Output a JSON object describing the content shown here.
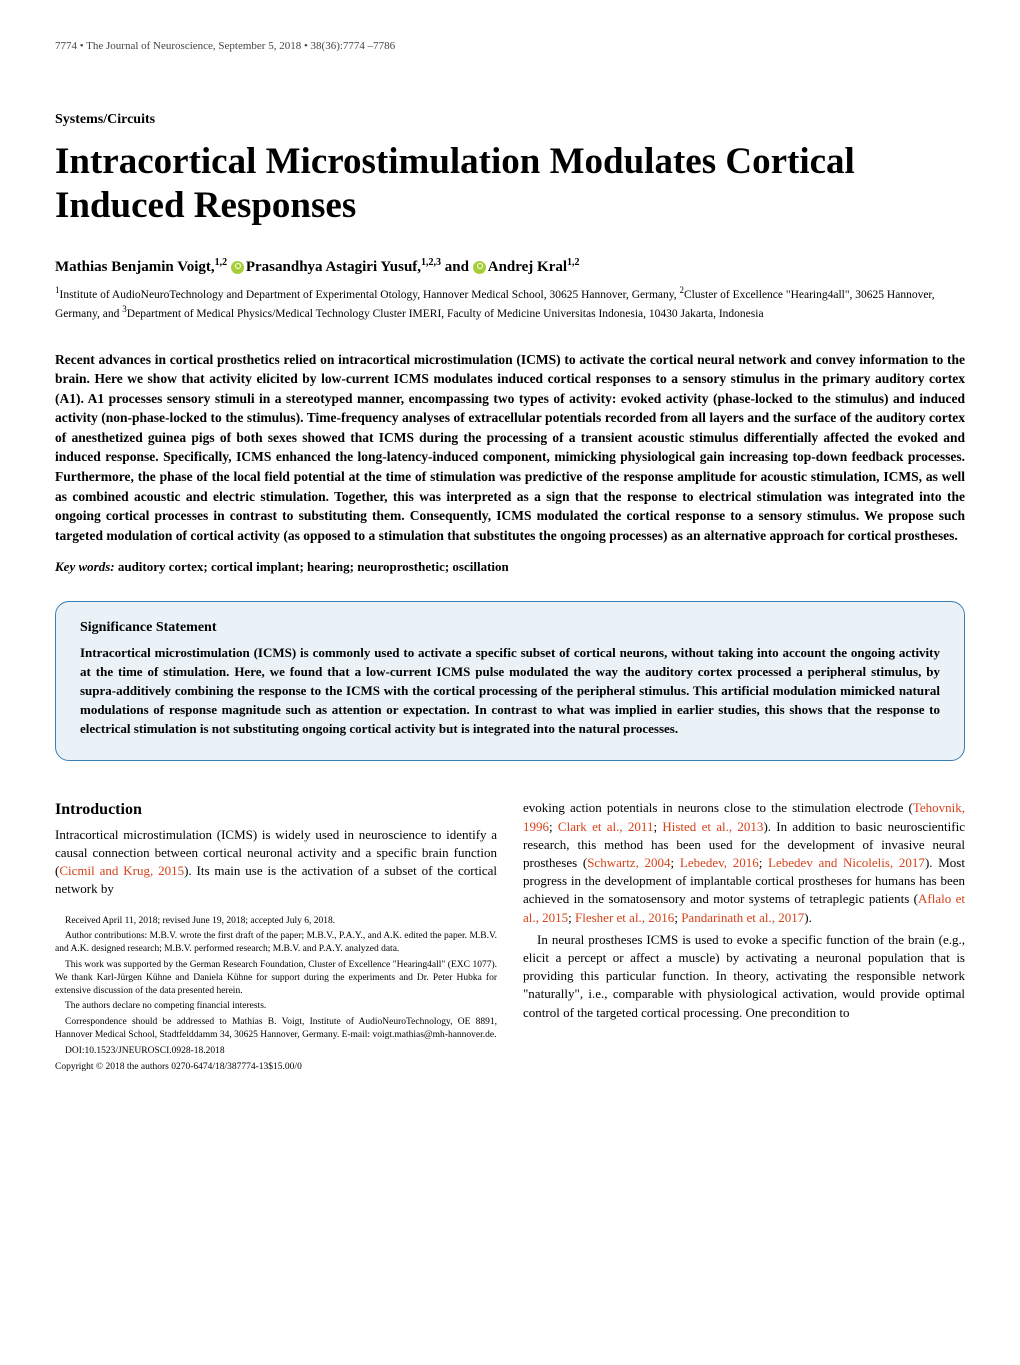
{
  "header": {
    "left": "7774 • The Journal of Neuroscience, September 5, 2018 • 38(36):7774 –7786",
    "right": ""
  },
  "section_label": "Systems/Circuits",
  "title": "Intracortical Microstimulation Modulates Cortical Induced Responses",
  "authors_html": "Mathias Benjamin Voigt,<sup>1,2</sup> <span class='orcid' data-name='orcid-icon' data-interactable='false'></span>Prasandhya Astagiri Yusuf,<sup>1,2,3</sup> and <span class='orcid' data-name='orcid-icon' data-interactable='false'></span>Andrej Kral<sup>1,2</sup>",
  "affiliations_html": "<sup>1</sup>Institute of AudioNeuroTechnology and Department of Experimental Otology, Hannover Medical School, 30625 Hannover, Germany, <sup>2</sup>Cluster of Excellence \"Hearing4all\", 30625 Hannover, Germany, and <sup>3</sup>Department of Medical Physics/Medical Technology Cluster IMERI, Faculty of Medicine Universitas Indonesia, 10430 Jakarta, Indonesia",
  "abstract": "Recent advances in cortical prosthetics relied on intracortical microstimulation (ICMS) to activate the cortical neural network and convey information to the brain. Here we show that activity elicited by low-current ICMS modulates induced cortical responses to a sensory stimulus in the primary auditory cortex (A1). A1 processes sensory stimuli in a stereotyped manner, encompassing two types of activity: evoked activity (phase-locked to the stimulus) and induced activity (non-phase-locked to the stimulus). Time-frequency analyses of extracellular potentials recorded from all layers and the surface of the auditory cortex of anesthetized guinea pigs of both sexes showed that ICMS during the processing of a transient acoustic stimulus differentially affected the evoked and induced response. Specifically, ICMS enhanced the long-latency-induced component, mimicking physiological gain increasing top-down feedback processes. Furthermore, the phase of the local field potential at the time of stimulation was predictive of the response amplitude for acoustic stimulation, ICMS, as well as combined acoustic and electric stimulation. Together, this was interpreted as a sign that the response to electrical stimulation was integrated into the ongoing cortical processes in contrast to substituting them. Consequently, ICMS modulated the cortical response to a sensory stimulus. We propose such targeted modulation of cortical activity (as opposed to a stimulation that substitutes the ongoing processes) as an alternative approach for cortical prostheses.",
  "keywords": {
    "label": "Key words:",
    "vals": "auditory cortex; cortical implant; hearing; neuroprosthetic; oscillation"
  },
  "significance": {
    "title": "Significance Statement",
    "text": "Intracortical microstimulation (ICMS) is commonly used to activate a specific subset of cortical neurons, without taking into account the ongoing activity at the time of stimulation. Here, we found that a low-current ICMS pulse modulated the way the auditory cortex processed a peripheral stimulus, by supra-additively combining the response to the ICMS with the cortical processing of the peripheral stimulus. This artificial modulation mimicked natural modulations of response magnitude such as attention or expectation. In contrast to what was implied in earlier studies, this shows that the response to electrical stimulation is not substituting ongoing cortical activity but is integrated into the natural processes."
  },
  "intro": {
    "heading": "Introduction",
    "col1_p1_html": "Intracortical microstimulation (ICMS) is widely used in neuroscience to identify a causal connection between cortical neuronal activity and a specific brain function (<span class='cite'>Cicmil and Krug, 2015</span>). Its main use is the activation of a subset of the cortical network by",
    "col2_p1_html": "evoking action potentials in neurons close to the stimulation electrode (<span class='cite'>Tehovnik, 1996</span>; <span class='cite'>Clark et al., 2011</span>; <span class='cite'>Histed et al., 2013</span>). In addition to basic neuroscientific research, this method has been used for the development of invasive neural prostheses (<span class='cite'>Schwartz, 2004</span>; <span class='cite'>Lebedev, 2016</span>; <span class='cite'>Lebedev and Nicolelis, 2017</span>). Most progress in the development of implantable cortical prostheses for humans has been achieved in the somatosensory and motor systems of tetraplegic patients (<span class='cite'>Aflalo et al., 2015</span>; <span class='cite'>Flesher et al., 2016</span>; <span class='cite'>Pandarinath et al., 2017</span>).",
    "col2_p2_html": "In neural prostheses ICMS is used to evoke a specific function of the brain (e.g., elicit a percept or affect a muscle) by activating a neuronal population that is providing this particular function. In theory, activating the responsible network \"naturally\", i.e., comparable with physiological activation, would provide optimal control of the targeted cortical processing. One precondition to"
  },
  "footnotes": {
    "received": "Received April 11, 2018; revised June 19, 2018; accepted July 6, 2018.",
    "contrib": "Author contributions: M.B.V. wrote the first draft of the paper; M.B.V., P.A.Y., and A.K. edited the paper. M.B.V. and A.K. designed research; M.B.V. performed research; M.B.V. and P.A.Y. analyzed data.",
    "funding": "This work was supported by the German Research Foundation, Cluster of Excellence \"Hearing4all\" (EXC 1077). We thank Karl-Jürgen Kühne and Daniela Kühne for support during the experiments and Dr. Peter Hubka for extensive discussion of the data presented herein.",
    "competing": "The authors declare no competing financial interests.",
    "corr": "Correspondence should be addressed to Mathias B. Voigt, Institute of AudioNeuroTechnology, OE 8891, Hannover Medical School, Stadtfelddamm 34, 30625 Hannover, Germany. E-mail: voigt.mathias@mh-hannover.de.",
    "doi": "DOI:10.1523/JNEUROSCI.0928-18.2018",
    "copyright": "Copyright © 2018 the authors     0270-6474/18/387774-13$15.00/0"
  },
  "colors": {
    "box_border": "#3780b8",
    "box_bg": "#eaf2f8",
    "citation": "#d6421a",
    "orcid": "#a6ce39"
  },
  "typography": {
    "body_font": "Georgia serif",
    "title_pt": 37,
    "abstract_pt": 13.5,
    "body_pt": 13,
    "footnote_pt": 9.5
  }
}
